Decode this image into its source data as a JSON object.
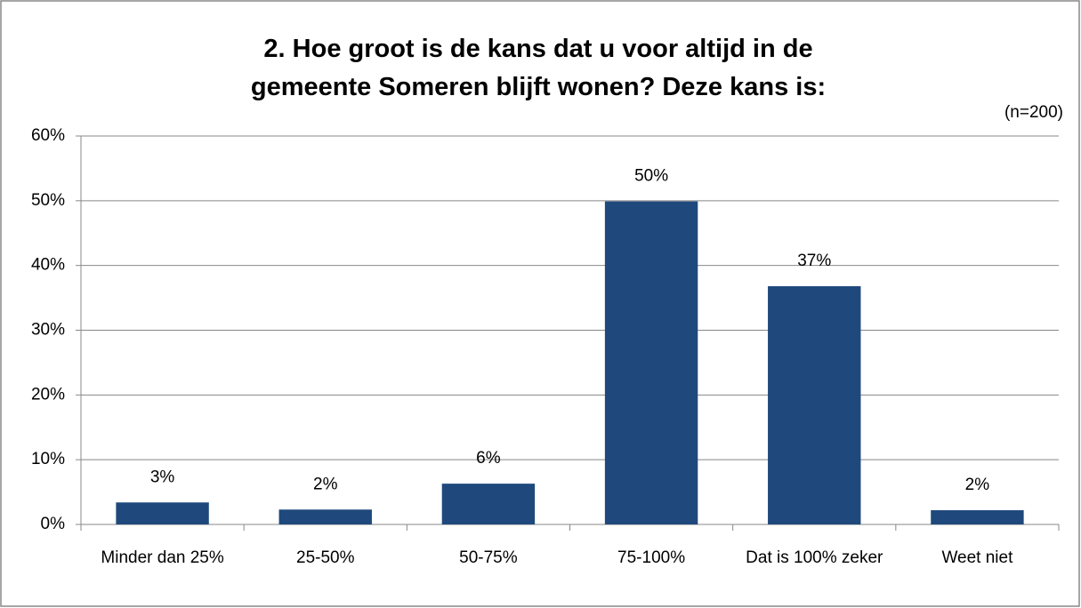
{
  "chart_data": {
    "type": "bar",
    "title": "2. Hoe groot is de kans dat u voor altijd in de gemeente Someren blijft wonen? Deze kans is:",
    "subtitle": "(n=200)",
    "categories": [
      "Minder dan 25%",
      "25-50%",
      "50-75%",
      "75-100%",
      "Dat is 100% zeker",
      "Weet niet"
    ],
    "values": [
      3.4,
      2.3,
      6.3,
      49.9,
      36.8,
      2.2
    ],
    "value_labels": [
      "3%",
      "2%",
      "6%",
      "50%",
      "37%",
      "2%"
    ],
    "color": "#1f497d",
    "ylim": [
      0,
      60
    ],
    "yticks": [
      {
        "value": 0,
        "label": "0%"
      },
      {
        "value": 10,
        "label": "10%"
      },
      {
        "value": 20,
        "label": "20%"
      },
      {
        "value": 30,
        "label": "30%"
      },
      {
        "value": 40,
        "label": "40%"
      },
      {
        "value": 50,
        "label": "50%"
      },
      {
        "value": 60,
        "label": "60%"
      }
    ],
    "grid": true
  }
}
